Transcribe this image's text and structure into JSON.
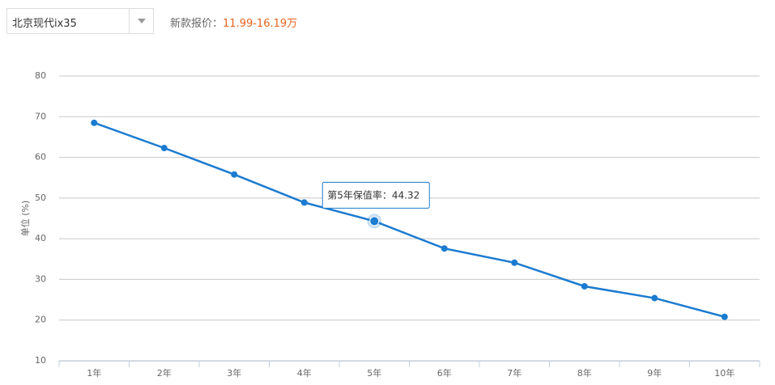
{
  "header": {
    "model": "北京现代ix35",
    "price_label": "新款报价：",
    "price": "11.99-16.19万"
  },
  "chart_data": {
    "type": "line",
    "ylabel": "单位 (%)",
    "categories": [
      "1年",
      "2年",
      "3年",
      "4年",
      "5年",
      "6年",
      "7年",
      "8年",
      "9年",
      "10年"
    ],
    "series": [
      {
        "name": "保值率",
        "color": "#1b7bd0",
        "values": [
          68.5,
          62.3,
          55.8,
          48.9,
          44.32,
          37.6,
          34.1,
          28.3,
          25.4,
          20.8
        ]
      }
    ],
    "tooltip": {
      "label": "第5年保值率："
    },
    "ylim": [
      10,
      80
    ],
    "yticks": [
      10,
      20,
      30,
      40,
      50,
      60,
      70,
      80
    ],
    "grid": true
  }
}
